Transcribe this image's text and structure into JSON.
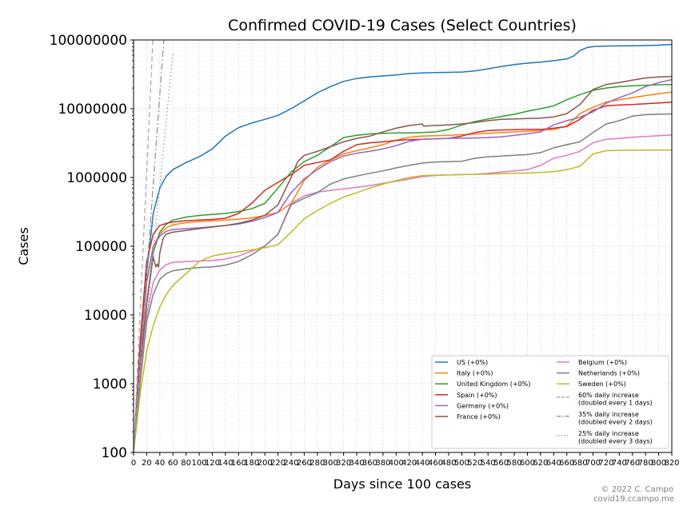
{
  "chart_data": {
    "type": "line",
    "title": "Confirmed COVID-19 Cases (Select Countries)",
    "xlabel": "Days since 100 cases",
    "ylabel": "Cases",
    "xlim": [
      0,
      820
    ],
    "ylim": [
      100,
      100000000
    ],
    "yscale": "log",
    "grid": true,
    "legend_placement": "lower-right",
    "x_ticks": [
      "0",
      "20",
      "40",
      "60",
      "80",
      "100",
      "120",
      "140",
      "160",
      "180",
      "200",
      "220",
      "240",
      "260",
      "280",
      "300",
      "320",
      "340",
      "360",
      "380",
      "400",
      "420",
      "440",
      "460",
      "480",
      "500",
      "520",
      "540",
      "560",
      "580",
      "600",
      "620",
      "640",
      "660",
      "680",
      "700",
      "720",
      "740",
      "760",
      "780",
      "800",
      "820"
    ],
    "y_ticks": [
      "100",
      "1000",
      "10000",
      "100000",
      "1000000",
      "10000000",
      "100000000"
    ],
    "series": [
      {
        "name": "US (+0%)",
        "color": "#1f77b4",
        "style": "solid",
        "x": [
          0,
          10,
          20,
          30,
          40,
          50,
          60,
          80,
          100,
          120,
          140,
          160,
          180,
          200,
          220,
          240,
          260,
          280,
          300,
          320,
          340,
          360,
          380,
          400,
          420,
          440,
          460,
          480,
          500,
          520,
          540,
          560,
          580,
          600,
          620,
          640,
          660,
          670,
          680,
          690,
          700,
          720,
          740,
          760,
          780,
          800,
          820
        ],
        "y": [
          100,
          3000,
          40000,
          300000,
          700000,
          1050000,
          1300000,
          1650000,
          2000000,
          2600000,
          4000000,
          5300000,
          6200000,
          7000000,
          8000000,
          10000000,
          13000000,
          17000000,
          21000000,
          25000000,
          27500000,
          29000000,
          30000000,
          31000000,
          32500000,
          33200000,
          33600000,
          33800000,
          34200000,
          35500000,
          38000000,
          41000000,
          44000000,
          46000000,
          47500000,
          50000000,
          53000000,
          58000000,
          70000000,
          77000000,
          80000000,
          81500000,
          82000000,
          82500000,
          83000000,
          84000000,
          86000000
        ]
      },
      {
        "name": "Italy (+0%)",
        "color": "#ff7f0e",
        "style": "solid",
        "x": [
          0,
          10,
          20,
          30,
          40,
          50,
          60,
          80,
          100,
          120,
          140,
          160,
          180,
          200,
          220,
          240,
          260,
          280,
          300,
          320,
          340,
          360,
          380,
          400,
          420,
          440,
          460,
          480,
          500,
          520,
          540,
          560,
          580,
          600,
          620,
          640,
          660,
          680,
          700,
          720,
          740,
          760,
          780,
          800,
          820
        ],
        "y": [
          100,
          2500,
          30000,
          100000,
          150000,
          185000,
          205000,
          220000,
          228000,
          234000,
          240000,
          248000,
          258000,
          280000,
          310000,
          420000,
          900000,
          1400000,
          1800000,
          2200000,
          2450000,
          2700000,
          3000000,
          3500000,
          3850000,
          4000000,
          4050000,
          4100000,
          4200000,
          4280000,
          4400000,
          4500000,
          4600000,
          4700000,
          4800000,
          5000000,
          5600000,
          8500000,
          10500000,
          12500000,
          13500000,
          14500000,
          15500000,
          16500000,
          17500000
        ]
      },
      {
        "name": "United Kingdom (+0%)",
        "color": "#2ca02c",
        "style": "solid",
        "x": [
          0,
          10,
          20,
          30,
          40,
          50,
          60,
          80,
          100,
          120,
          140,
          160,
          180,
          200,
          220,
          240,
          260,
          280,
          300,
          320,
          340,
          360,
          380,
          400,
          420,
          440,
          460,
          480,
          500,
          520,
          540,
          560,
          580,
          600,
          620,
          640,
          660,
          680,
          700,
          720,
          740,
          760,
          780,
          800,
          820
        ],
        "y": [
          100,
          1200,
          15000,
          80000,
          160000,
          210000,
          240000,
          265000,
          280000,
          290000,
          300000,
          320000,
          350000,
          420000,
          700000,
          1200000,
          1700000,
          2100000,
          2800000,
          3800000,
          4100000,
          4300000,
          4400000,
          4450000,
          4450000,
          4500000,
          4600000,
          5000000,
          5800000,
          6500000,
          7100000,
          7700000,
          8300000,
          9200000,
          10000000,
          11000000,
          13500000,
          16000000,
          18500000,
          20000000,
          21000000,
          21500000,
          22000000,
          22300000,
          22500000
        ]
      },
      {
        "name": "Spain (+0%)",
        "color": "#d62728",
        "style": "solid",
        "x": [
          0,
          10,
          20,
          30,
          40,
          50,
          60,
          80,
          100,
          120,
          140,
          160,
          180,
          200,
          220,
          240,
          260,
          280,
          300,
          320,
          340,
          360,
          380,
          400,
          420,
          440,
          460,
          480,
          500,
          520,
          540,
          560,
          580,
          600,
          620,
          640,
          660,
          680,
          700,
          720,
          740,
          760,
          780,
          800,
          820
        ],
        "y": [
          100,
          4000,
          60000,
          150000,
          200000,
          215000,
          225000,
          235000,
          240000,
          245000,
          255000,
          300000,
          420000,
          650000,
          850000,
          1100000,
          1500000,
          1650000,
          1800000,
          2400000,
          3000000,
          3200000,
          3300000,
          3450000,
          3550000,
          3600000,
          3650000,
          3700000,
          4000000,
          4500000,
          4800000,
          4900000,
          4950000,
          5000000,
          5000000,
          5200000,
          5500000,
          7000000,
          9500000,
          11000000,
          11300000,
          11500000,
          11800000,
          12100000,
          12500000
        ]
      },
      {
        "name": "Germany (+0%)",
        "color": "#9467bd",
        "style": "solid",
        "x": [
          0,
          10,
          20,
          30,
          40,
          50,
          60,
          80,
          100,
          120,
          140,
          160,
          180,
          200,
          220,
          240,
          260,
          280,
          300,
          320,
          340,
          360,
          380,
          400,
          420,
          440,
          460,
          480,
          500,
          520,
          540,
          560,
          580,
          600,
          620,
          640,
          660,
          680,
          700,
          720,
          740,
          760,
          780,
          800,
          820
        ],
        "y": [
          100,
          2500,
          30000,
          100000,
          140000,
          165000,
          175000,
          180000,
          185000,
          192000,
          200000,
          210000,
          230000,
          260000,
          310000,
          600000,
          950000,
          1300000,
          1700000,
          2050000,
          2250000,
          2400000,
          2600000,
          2900000,
          3350000,
          3600000,
          3650000,
          3700000,
          3720000,
          3750000,
          3800000,
          3900000,
          4100000,
          4300000,
          4600000,
          5800000,
          6700000,
          7500000,
          9000000,
          12000000,
          14500000,
          17000000,
          21000000,
          24000000,
          26500000
        ]
      },
      {
        "name": "France (+0%)",
        "color": "#8c564b",
        "style": "solid",
        "x": [
          0,
          10,
          20,
          30,
          34,
          36,
          38,
          40,
          45,
          50,
          60,
          80,
          100,
          120,
          140,
          160,
          180,
          200,
          220,
          240,
          250,
          260,
          280,
          300,
          320,
          340,
          360,
          380,
          400,
          420,
          440,
          442,
          460,
          480,
          500,
          520,
          540,
          560,
          580,
          600,
          620,
          640,
          660,
          680,
          700,
          720,
          740,
          760,
          780,
          800,
          820
        ],
        "y": [
          100,
          2000,
          15000,
          70000,
          50000,
          55000,
          50000,
          80000,
          130000,
          150000,
          160000,
          170000,
          180000,
          190000,
          200000,
          215000,
          240000,
          280000,
          400000,
          1000000,
          1700000,
          2100000,
          2400000,
          2800000,
          3300000,
          3700000,
          4000000,
          4600000,
          5200000,
          5700000,
          6000000,
          5600000,
          5700000,
          5800000,
          6000000,
          6300000,
          6700000,
          7000000,
          7100000,
          7200000,
          7300000,
          7600000,
          8500000,
          11500000,
          19000000,
          22500000,
          24000000,
          26000000,
          28000000,
          29000000,
          29500000
        ]
      },
      {
        "name": "Belgium (+0%)",
        "color": "#e377c2",
        "style": "solid",
        "x": [
          0,
          10,
          20,
          30,
          40,
          50,
          60,
          80,
          100,
          120,
          140,
          160,
          180,
          200,
          220,
          240,
          260,
          280,
          300,
          320,
          340,
          360,
          380,
          400,
          420,
          440,
          460,
          480,
          500,
          520,
          540,
          560,
          580,
          600,
          620,
          640,
          660,
          680,
          700,
          720,
          740,
          760,
          780,
          800,
          820
        ],
        "y": [
          100,
          1200,
          10000,
          30000,
          45000,
          54000,
          58000,
          60000,
          61000,
          62000,
          65000,
          72000,
          85000,
          100000,
          150000,
          420000,
          540000,
          610000,
          650000,
          680000,
          720000,
          760000,
          820000,
          880000,
          950000,
          1030000,
          1070000,
          1090000,
          1100000,
          1110000,
          1150000,
          1200000,
          1250000,
          1300000,
          1500000,
          1900000,
          2100000,
          2400000,
          3200000,
          3600000,
          3700000,
          3850000,
          3950000,
          4050000,
          4150000
        ]
      },
      {
        "name": "Netherlands (+0%)",
        "color": "#7f7f7f",
        "style": "solid",
        "x": [
          0,
          10,
          20,
          30,
          40,
          50,
          60,
          80,
          100,
          120,
          140,
          160,
          180,
          200,
          220,
          240,
          260,
          280,
          300,
          320,
          340,
          360,
          380,
          400,
          420,
          440,
          460,
          480,
          500,
          520,
          540,
          560,
          580,
          600,
          620,
          640,
          660,
          680,
          700,
          720,
          740,
          760,
          780,
          800,
          820
        ],
        "y": [
          100,
          1000,
          8000,
          20000,
          33000,
          40000,
          44000,
          47000,
          49000,
          50000,
          53000,
          60000,
          75000,
          100000,
          150000,
          400000,
          500000,
          600000,
          800000,
          950000,
          1050000,
          1150000,
          1250000,
          1380000,
          1500000,
          1620000,
          1680000,
          1700000,
          1720000,
          1900000,
          2000000,
          2050000,
          2100000,
          2150000,
          2300000,
          2700000,
          3000000,
          3300000,
          4500000,
          6000000,
          6700000,
          7800000,
          8200000,
          8350000,
          8400000
        ]
      },
      {
        "name": "Sweden (+0%)",
        "color": "#bcbd22",
        "style": "solid",
        "x": [
          0,
          10,
          20,
          30,
          40,
          50,
          60,
          80,
          100,
          120,
          140,
          160,
          180,
          200,
          220,
          240,
          260,
          280,
          300,
          320,
          340,
          360,
          380,
          400,
          420,
          440,
          460,
          480,
          500,
          520,
          540,
          560,
          580,
          600,
          620,
          640,
          660,
          680,
          700,
          720,
          740,
          760,
          780,
          800,
          820
        ],
        "y": [
          100,
          700,
          3000,
          7000,
          13000,
          20000,
          27000,
          40000,
          60000,
          72000,
          78000,
          83000,
          88000,
          95000,
          105000,
          160000,
          250000,
          330000,
          420000,
          520000,
          600000,
          700000,
          800000,
          900000,
          1000000,
          1060000,
          1080000,
          1090000,
          1100000,
          1110000,
          1120000,
          1130000,
          1150000,
          1160000,
          1180000,
          1220000,
          1300000,
          1450000,
          2200000,
          2450000,
          2480000,
          2490000,
          2500000,
          2500000,
          2500000
        ]
      },
      {
        "name": "60% daily increase\n(doubled every 1 days)",
        "color": "#aaaaaa",
        "style": "dashed",
        "x": [
          0,
          10,
          20,
          30,
          40
        ],
        "y": [
          100,
          11000,
          1200000,
          130000000,
          14000000000
        ]
      },
      {
        "name": "35% daily increase\n(doubled every 2 days)",
        "color": "#999999",
        "style": "dashdot",
        "x": [
          0,
          10,
          20,
          30,
          40,
          50
        ],
        "y": [
          100,
          2000,
          40000,
          800000,
          16000000,
          320000000
        ]
      },
      {
        "name": "25% daily increase\n(doubled every 3 days)",
        "color": "#999999",
        "style": "dotted",
        "x": [
          0,
          10,
          20,
          30,
          40,
          50,
          60
        ],
        "y": [
          100,
          930,
          8700,
          80800,
          752000,
          7000000,
          65000000
        ]
      }
    ]
  },
  "credit": {
    "line1": "© 2022 C. Campo",
    "line2": "covid19.ccampo.me"
  }
}
